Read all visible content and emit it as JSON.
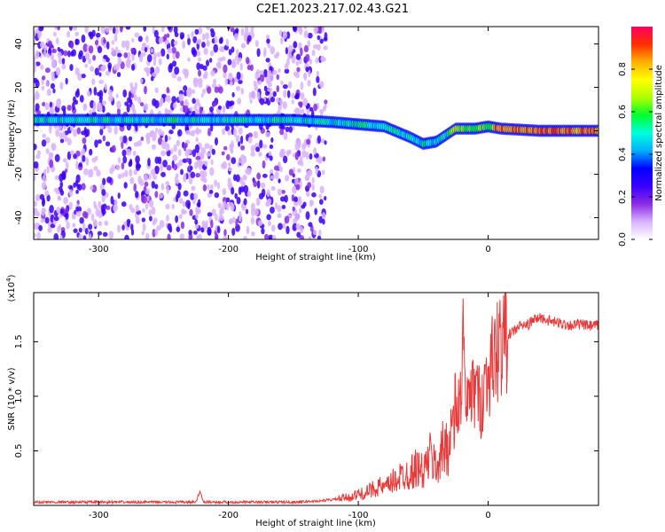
{
  "title": "C2E1.2023.217.02.43.G21",
  "chart_data": [
    {
      "type": "heatmap",
      "xlabel": "Height of straight line (km)",
      "ylabel": "Frequency (Hz)",
      "xlim": [
        -350,
        85
      ],
      "ylim": [
        -50,
        48
      ],
      "xticks": [
        -300,
        -200,
        -100,
        0
      ],
      "yticks": [
        -40,
        -20,
        0,
        20,
        40
      ],
      "colorbar": {
        "label": "Normalized spectral amplitude",
        "range": [
          0,
          1
        ],
        "ticks": [
          "0.0",
          "0.2",
          "0.4",
          "0.6",
          "0.8"
        ],
        "colors": [
          "#ffffff",
          "#d9b3ff",
          "#8a2be2",
          "#3a00ff",
          "#0000ff",
          "#00b0ff",
          "#00ffdc",
          "#00ff30",
          "#b0ff00",
          "#ffff00",
          "#ffb000",
          "#ff3000",
          "#ff0060"
        ]
      },
      "ridge": {
        "x": [
          -350,
          -300,
          -250,
          -200,
          -150,
          -120,
          -100,
          -80,
          -60,
          -50,
          -40,
          -30,
          -25,
          -20,
          -10,
          0,
          10,
          40,
          85
        ],
        "y": [
          5,
          5,
          5,
          5,
          5,
          4,
          3,
          2,
          -3,
          -6,
          -5,
          -1,
          1,
          1,
          1,
          2,
          1,
          0,
          0
        ]
      },
      "scatter_region": [
        -350,
        -125
      ]
    },
    {
      "type": "line",
      "xlabel": "Height of straight line (km)",
      "ylabel": "SNR (10 * v/v)",
      "multiplier": "(x10^4)",
      "xlim": [
        -350,
        85
      ],
      "ylim": [
        0,
        1.95
      ],
      "xticks": [
        -300,
        -200,
        -100,
        0
      ],
      "yticks": [
        "0.5",
        "1.0",
        "1.5"
      ],
      "series": [
        {
          "color": "#e83a3a",
          "x": [
            -350,
            -300,
            -250,
            -225,
            -222,
            -219,
            -200,
            -150,
            -130,
            -115,
            -105,
            -100,
            -95,
            -90,
            -85,
            -80,
            -75,
            -70,
            -65,
            -60,
            -55,
            -50,
            -45,
            -40,
            -35,
            -30,
            -27,
            -24,
            -21,
            -19,
            -17,
            -15,
            -12,
            -9,
            -6,
            -3,
            0,
            3,
            6,
            10,
            15,
            20,
            25,
            30,
            35,
            40,
            45,
            50,
            55,
            60,
            65,
            70,
            75,
            80,
            85
          ],
          "y": [
            0.03,
            0.03,
            0.03,
            0.03,
            0.13,
            0.03,
            0.03,
            0.03,
            0.04,
            0.06,
            0.08,
            0.1,
            0.11,
            0.14,
            0.18,
            0.15,
            0.2,
            0.25,
            0.28,
            0.3,
            0.35,
            0.3,
            0.45,
            0.35,
            0.5,
            0.6,
            0.75,
            0.85,
            1.0,
            1.6,
            0.7,
            1.1,
            1.0,
            1.1,
            0.9,
            1.1,
            1.2,
            1.3,
            1.4,
            1.5,
            1.55,
            1.6,
            1.65,
            1.65,
            1.7,
            1.72,
            1.7,
            1.68,
            1.67,
            1.66,
            1.65,
            1.66,
            1.65,
            1.64,
            1.65
          ]
        }
      ]
    }
  ]
}
